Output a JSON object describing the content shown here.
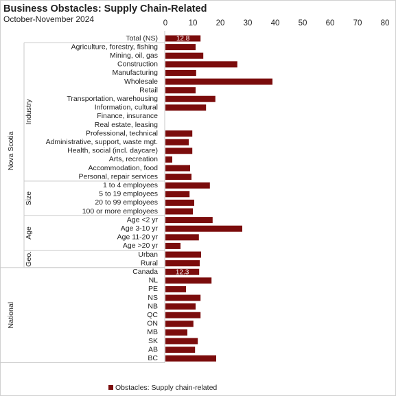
{
  "chart_data": {
    "type": "bar",
    "orientation": "horizontal",
    "title": "Business Obstacles: Supply Chain-Related",
    "subtitle": "October-November 2024",
    "categories": [
      "Total (NS)",
      "Agriculture, forestry, fishing",
      "Mining, oil, gas",
      "Construction",
      "Manufacturing",
      "Wholesale",
      "Retail",
      "Transportation, warehousing",
      "Information, cultural",
      "Finance, insurance",
      "Real estate, leasing",
      "Professional, technical",
      "Administrative, support, waste mgt.",
      "Health, social (incl. daycare)",
      "Arts, recreation",
      "Accommodation, food",
      "Personal, repair services",
      "1 to 4 employees",
      "5 to 19 employees",
      "20 to 99 employees",
      "100 or more employees",
      "Age <2 yr",
      "Age 3-10 yr",
      "Age 11-20 yr",
      "Age >20 yr",
      "Urban",
      "Rural",
      "Canada",
      "NL",
      "PE",
      "NS",
      "NB",
      "QC",
      "ON",
      "MB",
      "SK",
      "AB",
      "BC"
    ],
    "series": [
      {
        "name": "Obstacles: Supply chain-related",
        "color": "#7b0c0c",
        "values": [
          12.8,
          11.0,
          13.8,
          26.2,
          11.2,
          39.0,
          11.0,
          18.2,
          14.8,
          null,
          null,
          9.8,
          8.5,
          9.8,
          2.5,
          9.0,
          9.5,
          16.2,
          8.8,
          10.5,
          10.0,
          17.2,
          28.0,
          12.2,
          5.5,
          13.0,
          12.5,
          12.3,
          16.8,
          7.5,
          12.8,
          11.0,
          12.8,
          10.2,
          8.0,
          11.8,
          10.8,
          18.5
        ],
        "value_labels": [
          "12.8",
          null,
          null,
          null,
          null,
          null,
          null,
          null,
          null,
          null,
          null,
          null,
          null,
          null,
          null,
          null,
          null,
          null,
          null,
          null,
          null,
          null,
          null,
          null,
          null,
          null,
          null,
          "12.3",
          null,
          null,
          null,
          null,
          null,
          null,
          null,
          null,
          null,
          null
        ]
      }
    ],
    "groups": [
      {
        "label": "Nova Scotia",
        "level": 0,
        "start": 0,
        "end": 26
      },
      {
        "label": "Industry",
        "level": 1,
        "start": 1,
        "end": 16
      },
      {
        "label": "Size",
        "level": 1,
        "start": 17,
        "end": 20
      },
      {
        "label": "Age",
        "level": 1,
        "start": 21,
        "end": 24
      },
      {
        "label": "Geo.",
        "level": 1,
        "start": 25,
        "end": 26
      },
      {
        "label": "National",
        "level": 0,
        "start": 27,
        "end": 37
      }
    ],
    "xlim": [
      0,
      80
    ],
    "xticks": [
      0,
      10,
      20,
      30,
      40,
      50,
      60,
      70,
      80
    ],
    "grid": false,
    "legend": "bottom"
  }
}
